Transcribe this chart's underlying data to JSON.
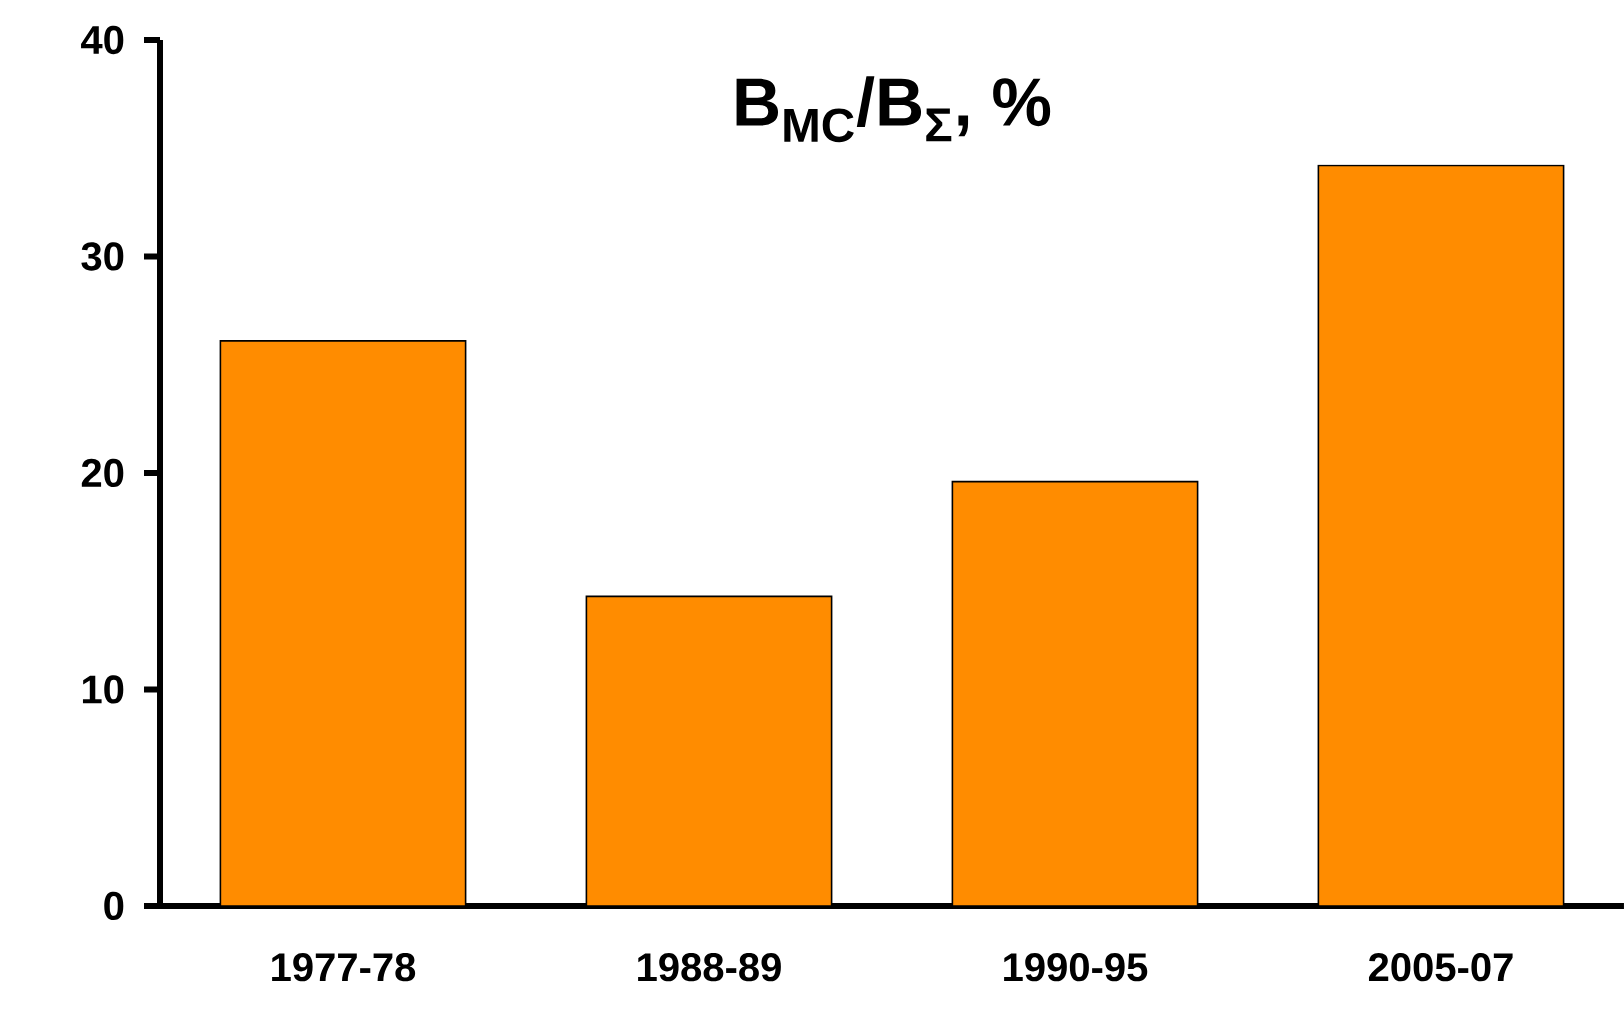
{
  "chart_data": {
    "type": "bar",
    "title": "**B$_{MC}$/B$_{Σ}$, %**",
    "categories": [
      "1977-78",
      "1988-89",
      "1990-95",
      "2005-07"
    ],
    "values": [
      26.1,
      14.3,
      19.6,
      34.2
    ],
    "color": "#ff8c00",
    "ylim": [
      0,
      40
    ],
    "yticks": [
      0,
      10,
      20,
      30,
      40
    ]
  }
}
